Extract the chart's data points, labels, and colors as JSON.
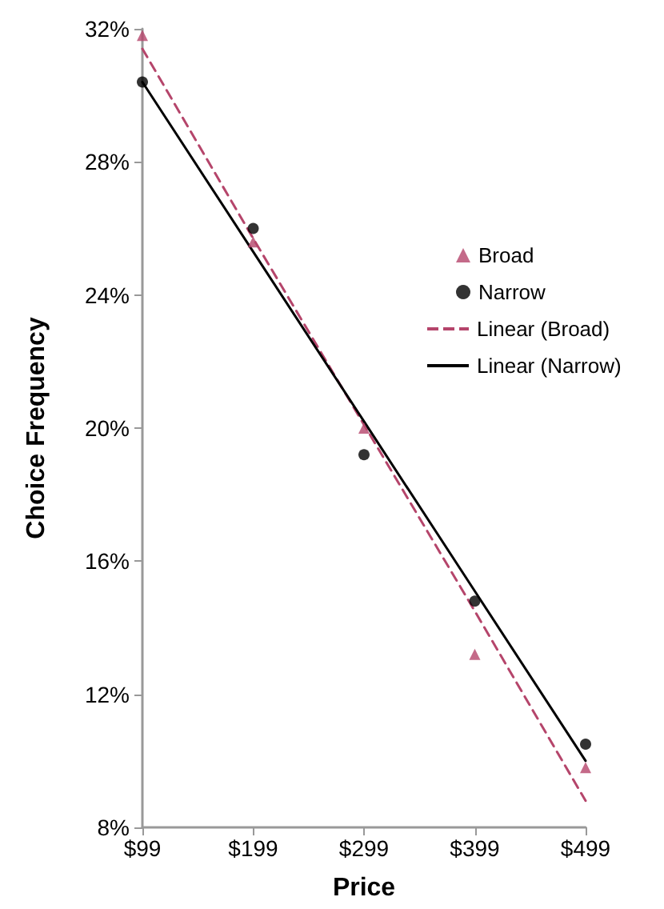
{
  "chart_data": {
    "type": "scatter",
    "xlabel": "Price",
    "ylabel": "Choice Frequency",
    "xlim": [
      99,
      499
    ],
    "xticks": [
      {
        "value": 99,
        "label": "$99"
      },
      {
        "value": 199,
        "label": "$199"
      },
      {
        "value": 299,
        "label": "$299"
      },
      {
        "value": 399,
        "label": "$399"
      },
      {
        "value": 499,
        "label": "$499"
      }
    ],
    "ylim": [
      8,
      32
    ],
    "yticks": [
      {
        "value": 8,
        "label": "8%"
      },
      {
        "value": 12,
        "label": "12%"
      },
      {
        "value": 16,
        "label": "16%"
      },
      {
        "value": 20,
        "label": "20%"
      },
      {
        "value": 24,
        "label": "24%"
      },
      {
        "value": 28,
        "label": "28%"
      },
      {
        "value": 32,
        "label": "32%"
      }
    ],
    "x": [
      99,
      199,
      299,
      399,
      499
    ],
    "series": [
      {
        "name": "Broad",
        "color": "#b5456b",
        "marker": "triangle",
        "values": [
          31.8,
          25.6,
          20.0,
          13.2,
          9.8
        ]
      },
      {
        "name": "Narrow",
        "color": "#000000",
        "marker": "circle",
        "values": [
          30.4,
          26.0,
          19.2,
          14.8,
          10.5
        ]
      },
      {
        "name": "Linear (Broad)",
        "type": "line",
        "color": "#b5456b",
        "line_style": "dashed",
        "marker": "none",
        "values": [
          31.4,
          25.7,
          20.1,
          14.5,
          8.8
        ]
      },
      {
        "name": "Linear (Narrow)",
        "type": "line",
        "color": "#000000",
        "line_style": "solid",
        "marker": "none",
        "values": [
          30.4,
          25.3,
          20.2,
          15.1,
          10.0
        ]
      }
    ],
    "grid": false,
    "legend": "right"
  }
}
